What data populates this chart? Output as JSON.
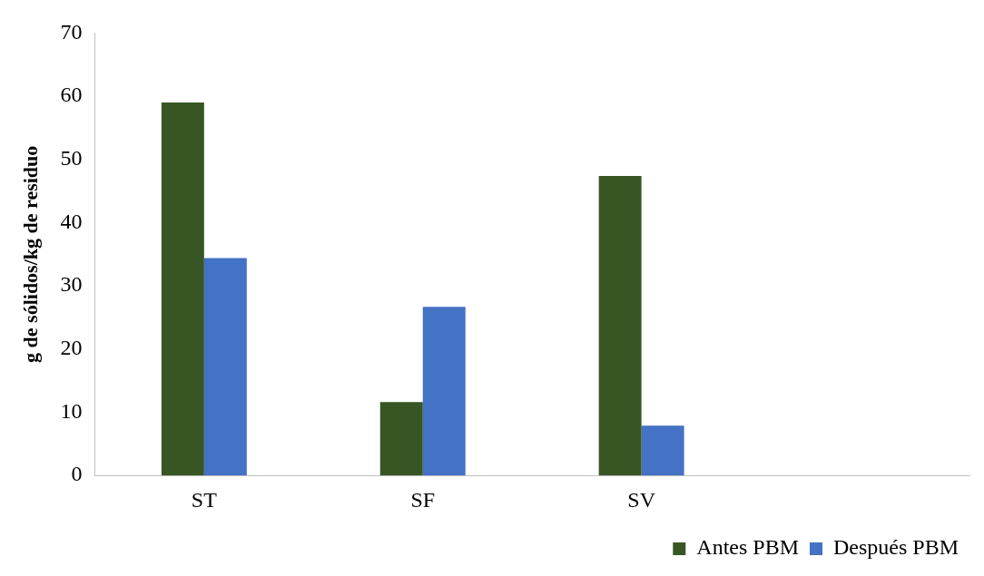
{
  "chart_data": {
    "type": "bar",
    "ylabel": "g de sólidos/kg de residuo",
    "categories": [
      "ST",
      "SF",
      "SV",
      null
    ],
    "series": [
      {
        "name": "Antes PBM",
        "color": "#375623",
        "values": [
          59.0,
          11.6,
          47.4,
          null
        ]
      },
      {
        "name": "Después PBM",
        "color": "#4472c4",
        "values": [
          34.4,
          26.7,
          7.9,
          null
        ]
      }
    ],
    "ylim": [
      0,
      70
    ],
    "yticks": [
      0,
      10,
      20,
      30,
      40,
      50,
      60,
      70
    ],
    "grid": false,
    "legend": "bottom right"
  }
}
